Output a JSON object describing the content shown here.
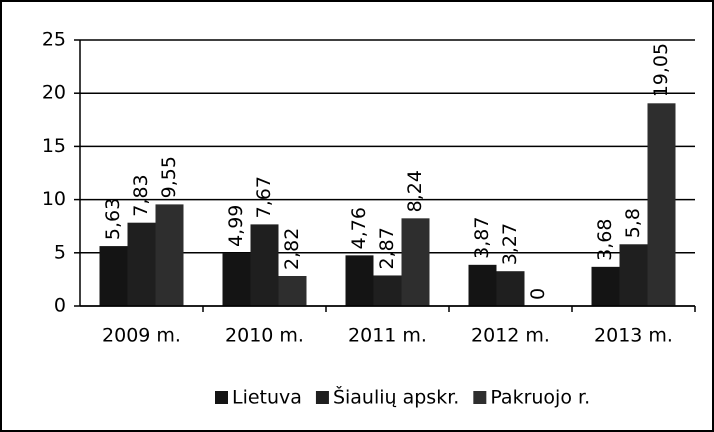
{
  "chart_data": {
    "type": "bar",
    "categories": [
      "2009 m.",
      "2010 m.",
      "2011 m.",
      "2012 m.",
      "2013 m."
    ],
    "series": [
      {
        "name": "Lietuva",
        "color": "#141414",
        "values": [
          5.63,
          4.99,
          4.76,
          3.87,
          3.68
        ],
        "value_labels": [
          "5,63",
          "4,99",
          "4,76",
          "3,87",
          "3,68"
        ]
      },
      {
        "name": "Šiaulių apskr.",
        "color": "#1f1f1f",
        "values": [
          7.83,
          7.67,
          2.87,
          3.27,
          5.8
        ],
        "value_labels": [
          "7,83",
          "7,67",
          "2,87",
          "3,27",
          "5,8"
        ]
      },
      {
        "name": "Pakruojo r.",
        "color": "#2e2e2e",
        "values": [
          9.55,
          2.82,
          8.24,
          0,
          19.05
        ],
        "value_labels": [
          "9,55",
          "2,82",
          "8,24",
          "0",
          "19,05"
        ]
      }
    ],
    "ylim": [
      0,
      25
    ],
    "yticks": [
      0,
      5,
      10,
      15,
      20,
      25
    ],
    "grid": true,
    "legend": "bottom"
  }
}
